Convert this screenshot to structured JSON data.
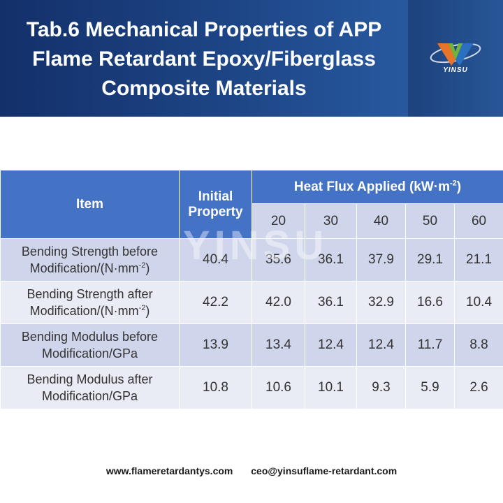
{
  "header": {
    "title_lines": [
      "Tab.6 Mechanical Properties of APP",
      "Flame Retardant Epoxy/Fiberglass",
      "Composite Materials"
    ],
    "logo_text": "YINSU",
    "logo_colors": {
      "orange": "#e8742a",
      "blue": "#2a6fc0",
      "green": "#6fb53a"
    }
  },
  "watermark": "YINSU",
  "table": {
    "col_item": "Item",
    "col_initial_line1": "Initial",
    "col_initial_line2": "Property",
    "heat_flux_label": "Heat Flux Applied (kW·m",
    "heat_flux_exp": "-2",
    "heat_flux_close": ")",
    "flux_levels": [
      "20",
      "30",
      "40",
      "50",
      "60"
    ],
    "rows": [
      {
        "item_line1": "Bending Strength before",
        "item_line2": "Modification/(N·mm",
        "item_exp": "-2",
        "item_close": ")",
        "initial": "40.4",
        "values": [
          "35.6",
          "36.1",
          "37.9",
          "29.1",
          "21.1"
        ]
      },
      {
        "item_line1": "Bending Strength after",
        "item_line2": "Modification/(N·mm",
        "item_exp": "-2",
        "item_close": ")",
        "initial": "42.2",
        "values": [
          "42.0",
          "36.1",
          "32.9",
          "16.6",
          "10.4"
        ]
      },
      {
        "item_line1": "Bending Modulus before",
        "item_line2": "Modification/GPa",
        "initial": "13.9",
        "values": [
          "13.4",
          "12.4",
          "12.4",
          "11.7",
          "8.8"
        ]
      },
      {
        "item_line1": "Bending Modulus after",
        "item_line2": "Modification/GPa",
        "initial": "10.8",
        "values": [
          "10.6",
          "10.1",
          "9.3",
          "5.9",
          "2.6"
        ]
      }
    ]
  },
  "footer": {
    "website": "www.flameretardantys.com",
    "email": "ceo@yinsuflame-retardant.com"
  }
}
